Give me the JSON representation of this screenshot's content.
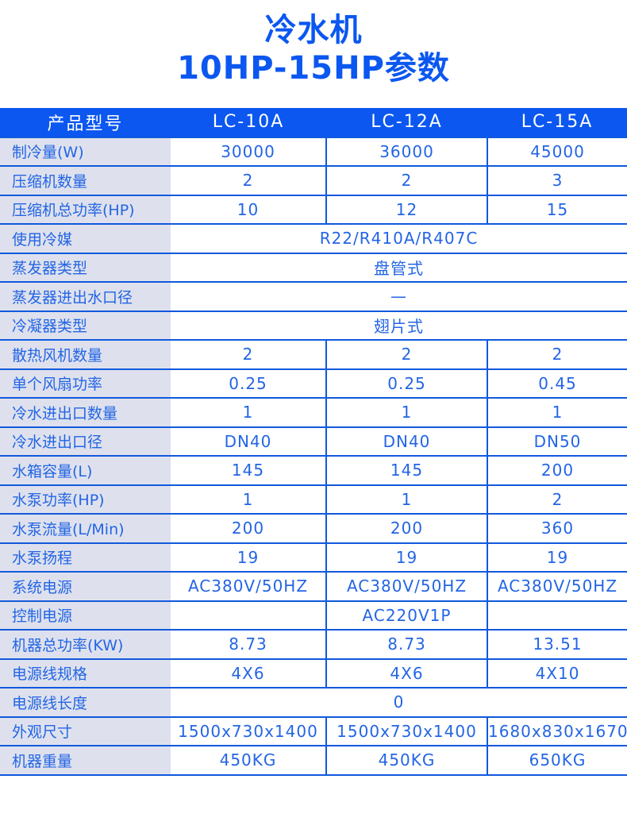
{
  "title": {
    "line1": "冷水机",
    "line2": "10HP-15HP参数"
  },
  "colors": {
    "header-blue": "#0b57f0",
    "title-blue": "#0b57f0",
    "line-blue": "#1159dd",
    "label-bg": "#dee1ed",
    "text-blue": "#2365e5"
  },
  "table": {
    "header": [
      "产品型号",
      "LC-10A",
      "LC-12A",
      "LC-15A"
    ],
    "rows": [
      {
        "label": "制冷量(W)",
        "type": "cells",
        "values": [
          "30000",
          "36000",
          "45000"
        ]
      },
      {
        "label": "压缩机数量",
        "type": "cells",
        "values": [
          "2",
          "2",
          "3"
        ]
      },
      {
        "label": "压缩机总功率(HP)",
        "type": "cells",
        "values": [
          "10",
          "12",
          "15"
        ]
      },
      {
        "label": "使用冷媒",
        "type": "merged",
        "value": "R22/R410A/R407C"
      },
      {
        "label": "蒸发器类型",
        "type": "merged",
        "value": "盘管式"
      },
      {
        "label": "蒸发器进出水口径",
        "type": "merged",
        "value": "—"
      },
      {
        "label": "冷凝器类型",
        "type": "merged",
        "value": "翅片式"
      },
      {
        "label": "散热风机数量",
        "type": "cells",
        "values": [
          "2",
          "2",
          "2"
        ]
      },
      {
        "label": "单个风扇功率",
        "type": "cells",
        "values": [
          "0.25",
          "0.25",
          "0.45"
        ]
      },
      {
        "label": "冷水进出口数量",
        "type": "cells",
        "values": [
          "1",
          "1",
          "1"
        ]
      },
      {
        "label": "冷水进出口径",
        "type": "cells",
        "values": [
          "DN40",
          "DN40",
          "DN50"
        ]
      },
      {
        "label": "水箱容量(L)",
        "type": "cells",
        "values": [
          "145",
          "145",
          "200"
        ]
      },
      {
        "label": "水泵功率(HP)",
        "type": "cells",
        "values": [
          "1",
          "1",
          "2"
        ]
      },
      {
        "label": "水泵流量(L/Min)",
        "type": "cells",
        "values": [
          "200",
          "200",
          "360"
        ]
      },
      {
        "label": "水泵扬程",
        "type": "cells",
        "values": [
          "19",
          "19",
          "19"
        ]
      },
      {
        "label": "系统电源",
        "type": "cells",
        "values": [
          "AC380V/50HZ",
          "AC380V/50HZ",
          "AC380V/50HZ"
        ]
      },
      {
        "label": "控制电源",
        "type": "cells",
        "values": [
          "",
          "AC220V1P",
          ""
        ]
      },
      {
        "label": "机器总功率(KW)",
        "type": "cells",
        "values": [
          "8.73",
          "8.73",
          "13.51"
        ]
      },
      {
        "label": "电源线规格",
        "type": "cells",
        "values": [
          "4X6",
          "4X6",
          "4X10"
        ]
      },
      {
        "label": "电源线长度",
        "type": "merged",
        "value": "0"
      },
      {
        "label": "外观尺寸",
        "type": "cells",
        "values": [
          "1500x730x1400",
          "1500x730x1400",
          "1680x830x1670"
        ]
      },
      {
        "label": "机器重量",
        "type": "cells",
        "values": [
          "450KG",
          "450KG",
          "650KG"
        ]
      }
    ]
  }
}
